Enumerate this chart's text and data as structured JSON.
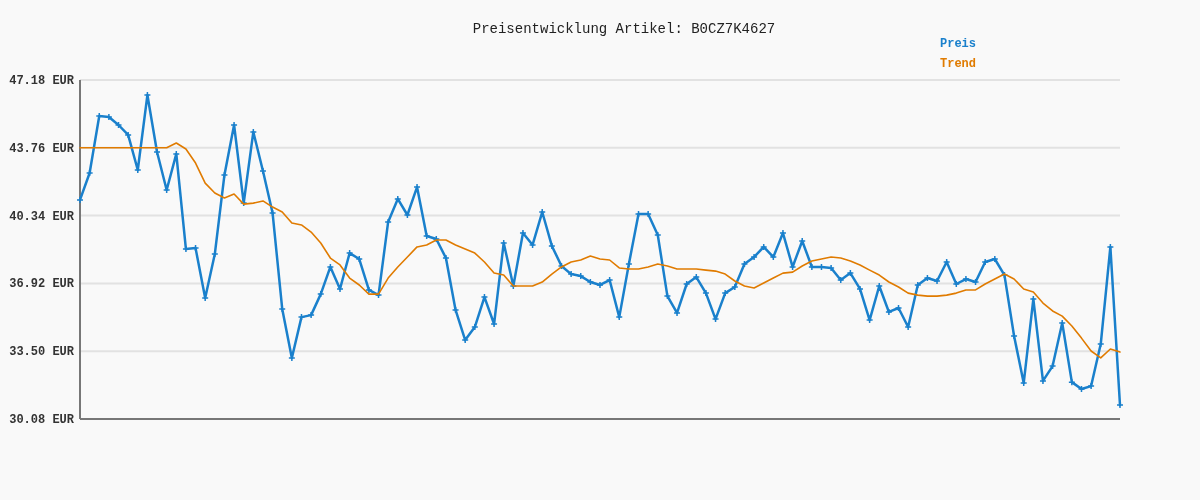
{
  "chart_data": {
    "type": "line",
    "title": "Preisentwicklung Artikel: B0CZ7K4627",
    "categories": [
      null,
      null,
      null,
      null,
      null,
      null,
      null,
      null,
      null,
      null,
      null,
      null,
      null,
      null,
      null,
      null,
      null,
      null,
      null,
      null,
      null,
      null,
      null,
      null,
      null,
      null,
      null,
      null,
      null,
      null,
      null,
      null,
      null,
      null,
      null,
      null,
      null,
      null,
      null,
      null,
      null,
      null,
      null,
      null,
      null,
      null,
      null,
      null,
      null,
      null,
      null,
      null,
      null,
      null,
      null,
      null,
      null,
      null,
      null,
      null,
      null,
      null,
      null,
      null,
      null,
      null,
      null,
      null,
      null,
      null,
      null,
      null,
      null,
      null,
      null,
      null,
      null,
      null,
      null,
      null,
      null,
      null,
      null,
      null,
      null,
      null,
      null,
      null,
      null,
      null,
      null,
      null,
      null,
      null,
      null,
      null,
      null,
      null,
      null,
      null,
      null,
      null,
      null,
      null,
      null,
      null,
      null,
      null,
      null
    ],
    "series": [
      {
        "name": "Preis",
        "color": "#1a80cc",
        "marker": "cross",
        "values": [
          41.13,
          42.49,
          45.36,
          45.31,
          44.91,
          44.41,
          42.64,
          46.42,
          43.55,
          41.63,
          43.45,
          38.65,
          38.7,
          36.18,
          38.4,
          42.39,
          44.91,
          40.97,
          44.56,
          42.59,
          40.47,
          35.63,
          33.16,
          35.22,
          35.32,
          36.38,
          37.75,
          36.64,
          38.45,
          38.15,
          36.59,
          36.33,
          40.02,
          41.18,
          40.37,
          41.78,
          39.31,
          39.16,
          38.2,
          35.58,
          34.06,
          34.72,
          36.23,
          34.87,
          38.96,
          36.79,
          39.46,
          38.86,
          40.52,
          38.81,
          37.8,
          37.39,
          37.29,
          36.99,
          36.84,
          37.09,
          35.22,
          37.9,
          40.42,
          40.42,
          39.36,
          36.28,
          35.43,
          36.89,
          37.24,
          36.43,
          35.12,
          36.43,
          36.74,
          37.9,
          38.25,
          38.76,
          38.25,
          39.46,
          37.75,
          39.06,
          37.75,
          37.75,
          37.7,
          37.09,
          37.44,
          36.64,
          35.07,
          36.79,
          35.48,
          35.68,
          34.72,
          36.84,
          37.19,
          37.04,
          38.0,
          36.89,
          37.14,
          36.99,
          38.0,
          38.15,
          37.34,
          34.27,
          31.89,
          36.13,
          32.0,
          32.75,
          34.92,
          31.94,
          31.59,
          31.74,
          33.86,
          38.76,
          30.78
        ]
      },
      {
        "name": "Trend",
        "color": "#e07b00",
        "values": [
          43.76,
          43.76,
          43.76,
          43.76,
          43.76,
          43.76,
          43.76,
          43.76,
          43.76,
          43.76,
          44.0,
          43.7,
          42.99,
          41.98,
          41.48,
          41.23,
          41.43,
          40.92,
          40.97,
          41.08,
          40.77,
          40.52,
          39.97,
          39.87,
          39.51,
          38.96,
          38.2,
          37.85,
          37.19,
          36.84,
          36.38,
          36.38,
          37.19,
          37.75,
          38.25,
          38.76,
          38.86,
          39.11,
          39.11,
          38.86,
          38.65,
          38.45,
          38.0,
          37.44,
          37.34,
          36.79,
          36.79,
          36.79,
          36.99,
          37.39,
          37.75,
          38.0,
          38.1,
          38.3,
          38.15,
          38.1,
          37.7,
          37.65,
          37.65,
          37.75,
          37.9,
          37.8,
          37.65,
          37.65,
          37.65,
          37.59,
          37.54,
          37.39,
          37.04,
          36.79,
          36.69,
          36.94,
          37.19,
          37.44,
          37.49,
          37.8,
          38.05,
          38.15,
          38.25,
          38.2,
          38.05,
          37.85,
          37.59,
          37.34,
          36.99,
          36.74,
          36.43,
          36.33,
          36.28,
          36.28,
          36.33,
          36.43,
          36.59,
          36.59,
          36.89,
          37.14,
          37.39,
          37.14,
          36.64,
          36.49,
          35.93,
          35.53,
          35.27,
          34.77,
          34.16,
          33.51,
          33.16,
          33.61,
          33.46
        ]
      }
    ],
    "ylim": [
      30.08,
      47.18
    ],
    "yticks": [
      {
        "value": 30.08,
        "label": "30.08 EUR"
      },
      {
        "value": 33.5,
        "label": "33.50 EUR"
      },
      {
        "value": 36.92,
        "label": "36.92 EUR"
      },
      {
        "value": 40.34,
        "label": "40.34 EUR"
      },
      {
        "value": 43.76,
        "label": "43.76 EUR"
      },
      {
        "value": 47.18,
        "label": "47.18 EUR"
      }
    ],
    "grid": "y",
    "legend": "top right",
    "tick_labels": "y"
  }
}
